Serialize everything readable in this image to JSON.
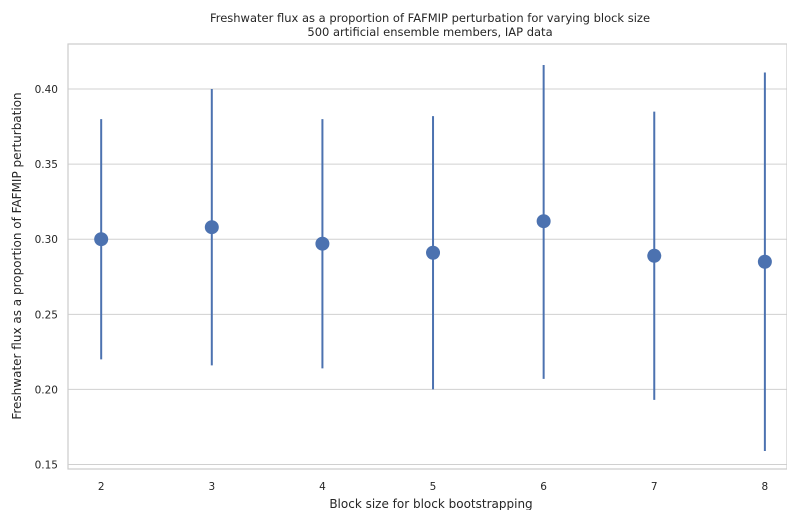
{
  "chart_data": {
    "type": "scatter",
    "title": "Freshwater flux as a proportion of FAFMIP perturbation for varying block size",
    "subtitle": "500 artificial ensemble members, IAP data",
    "xlabel": "Block size for block bootstrapping",
    "ylabel": "Freshwater flux as a proportion of FAFMIP perturbation",
    "x": [
      2,
      3,
      4,
      5,
      6,
      7,
      8
    ],
    "series": [
      {
        "values": [
          0.3,
          0.308,
          0.297,
          0.291,
          0.312,
          0.289,
          0.285
        ],
        "lower": [
          0.22,
          0.216,
          0.214,
          0.2,
          0.207,
          0.193,
          0.159
        ],
        "upper": [
          0.38,
          0.4,
          0.38,
          0.382,
          0.416,
          0.385,
          0.411
        ],
        "color": "#4c72b0"
      }
    ],
    "xticks": [
      "2",
      "3",
      "4",
      "5",
      "6",
      "7",
      "8"
    ],
    "yticks": [
      "0.15",
      "0.20",
      "0.25",
      "0.30",
      "0.35",
      "0.40"
    ],
    "xlim": [
      1.7,
      8.2
    ],
    "ylim": [
      0.147,
      0.43
    ],
    "grid": true,
    "grid_color": "#d0d0d0",
    "frame_color": "#cccccc"
  }
}
